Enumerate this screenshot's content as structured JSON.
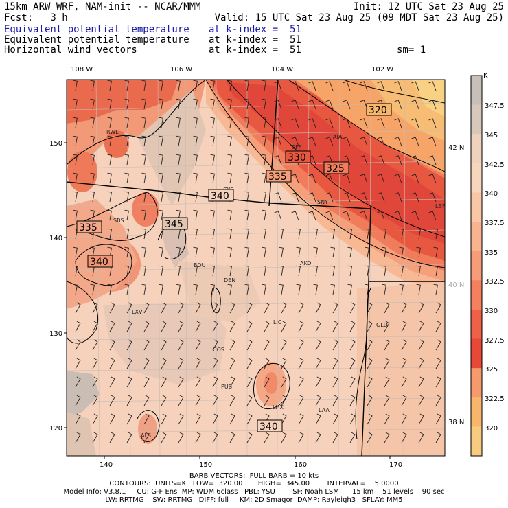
{
  "header": {
    "model": "15km ARW WRF, NAM-init -- NCAR/MMM",
    "init": "Init: 12 UTC Sat 23 Aug 25",
    "fcst": "Fcst:   3 h",
    "valid": "Valid: 15 UTC Sat 23 Aug 25 (09 MDT Sat 23 Aug 25)",
    "rows": [
      {
        "field": "Equivalent potential temperature",
        "level": "at k-index =  51",
        "extra": ""
      },
      {
        "field": "Equivalent potential temperature",
        "level": "at k-index =  51",
        "extra": ""
      },
      {
        "field": "Horizontal wind vectors",
        "level": "at k-index =  51",
        "extra": "sm= 1"
      }
    ]
  },
  "axes": {
    "top_lon": [
      "108 W",
      "106 W",
      "104 W",
      "102 W"
    ],
    "bottom_x": [
      "140",
      "150",
      "160",
      "170"
    ],
    "left_y": [
      "150",
      "140",
      "130",
      "120"
    ],
    "right_lat": [
      "42 N",
      "40 N",
      "38 N"
    ]
  },
  "colorbar": {
    "unit": "K",
    "labels": [
      "347.5",
      "345",
      "342.5",
      "340",
      "337.5",
      "335",
      "332.5",
      "330",
      "327.5",
      "325",
      "322.5",
      "320"
    ],
    "colors": [
      "#c8c0b8",
      "#d8c8bc",
      "#efd2bd",
      "#f7d6bc",
      "#f9c6a6",
      "#f8b48e",
      "#f69c78",
      "#f48060",
      "#ef6048",
      "#e84838",
      "#f49a6c",
      "#f7b66c",
      "#f8cc80"
    ]
  },
  "stations": [
    "RWL",
    "SBS",
    "CYS",
    "SFF",
    "AIA",
    "SNY",
    "LBF",
    "BOU",
    "DEN",
    "AKO",
    "LXV",
    "LIC",
    "COS",
    "GLD",
    "PUB",
    "LHX",
    "LAA",
    "ALS"
  ],
  "contour_labels": [
    "320",
    "330",
    "325",
    "335",
    "340",
    "345",
    "335",
    "340",
    "340"
  ],
  "footer": {
    "barbs": "BARB VECTORS:  FULL BARB = 10 kts",
    "contours": "CONTOURS:  UNITS=K   LOW=  320.00       HIGH=  345.00        INTERVAL=    5.0000",
    "model_info": "Model Info: V3.8.1     CU: G-F Ens  MP: WDM 6class   PBL: YSU        SF: Noah LSM      15 km    51 levels    90 sec",
    "physics": "LW: RRTMG    SW: RRTMG   DIFF: full     KM: 2D Smagor  DAMP: Rayleigh3   SFLAY: MM5"
  }
}
